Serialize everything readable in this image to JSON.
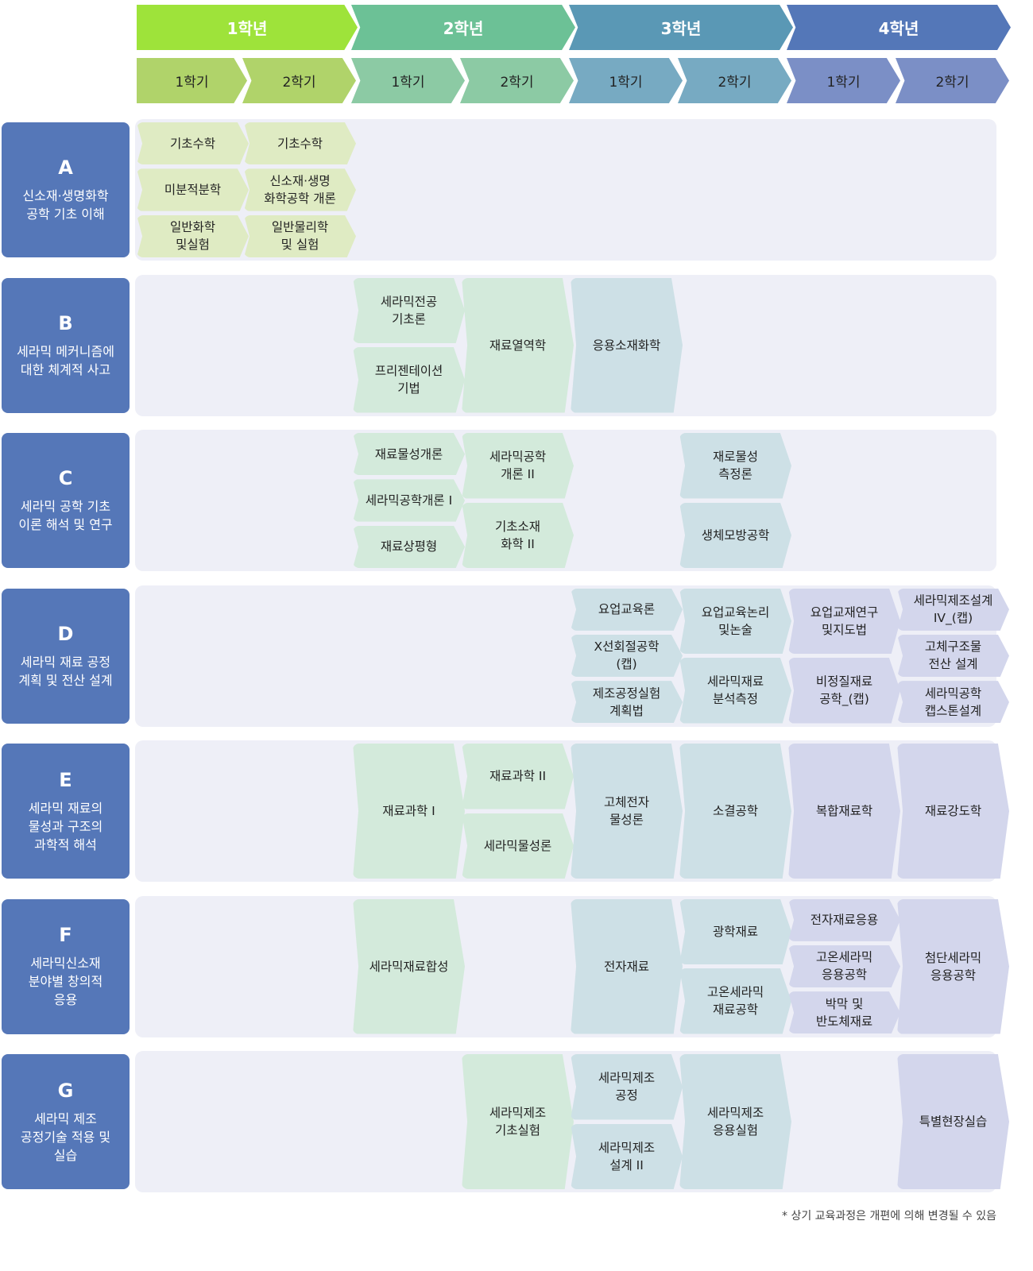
{
  "colors": {
    "years": [
      "#9ee33a",
      "#6cc196",
      "#5a98b5",
      "#5477b8"
    ],
    "semesters": [
      "#b0d36a",
      "#8ccaa4",
      "#77aac2",
      "#7b8fc6"
    ],
    "courses": [
      "#dfebc3",
      "#d3eadb",
      "#cde0e6",
      "#d3d6ec"
    ],
    "label_bg": "#5577b8",
    "panel_bg": "#eeeff7"
  },
  "header": {
    "years": [
      "1학년",
      "2학년",
      "3학년",
      "4학년"
    ],
    "semesters": [
      "1학기",
      "2학기",
      "1학기",
      "2학기",
      "1학기",
      "2학기",
      "1학기",
      "2학기"
    ]
  },
  "rows": [
    {
      "letter": "A",
      "title": "신소재·생명화학\n공학 기초 이해",
      "cells": [
        {
          "col": 0,
          "items": [
            "기초수학",
            "미분적분학",
            "일반화학\n및실험"
          ]
        },
        {
          "col": 1,
          "items": [
            "기초수학",
            "신소재·생명\n화학공학 개론",
            "일반물리학\n및 실험"
          ]
        }
      ]
    },
    {
      "letter": "B",
      "title": "세라믹 메커니즘에\n대한 체계적 사고",
      "cells": [
        {
          "col": 2,
          "items": [
            "세라믹전공\n기초론",
            "프리젠테이션\n기법"
          ]
        },
        {
          "col": 3,
          "items": [
            "재료열역학"
          ]
        },
        {
          "col": 4,
          "items": [
            "응용소재화학"
          ]
        }
      ]
    },
    {
      "letter": "C",
      "title": "세라믹 공학 기초\n이론 해석 및 연구",
      "cells": [
        {
          "col": 2,
          "items": [
            "재료물성개론",
            "세라믹공학개론 I",
            "재료상평형"
          ]
        },
        {
          "col": 3,
          "items": [
            "세라믹공학\n개론 II",
            "기초소재\n화학 II"
          ]
        },
        {
          "col": 5,
          "items": [
            "재로물성\n측정론",
            "생체모방공학"
          ]
        }
      ]
    },
    {
      "letter": "D",
      "title": "세라믹 재료 공정\n계획 및 전산 설계",
      "cells": [
        {
          "col": 4,
          "items": [
            "요업교육론",
            "X선회절공학\n(캡)",
            "제조공정실험\n계획법"
          ]
        },
        {
          "col": 5,
          "items": [
            "요업교육논리\n및논술",
            "세라믹재료\n분석측정"
          ]
        },
        {
          "col": 6,
          "items": [
            "요업교재연구\n및지도법",
            "비정질재료\n공학_(캡)"
          ]
        },
        {
          "col": 7,
          "items": [
            "세라믹제조설계\nIV_(캡)",
            "고체구조물\n전산 설계",
            "세라믹공학\n캡스톤설계"
          ]
        }
      ]
    },
    {
      "letter": "E",
      "title": "세라믹 재료의\n물성과 구조의\n과학적 해석",
      "cells": [
        {
          "col": 2,
          "items": [
            "재료과학 I"
          ]
        },
        {
          "col": 3,
          "items": [
            "재료과학 II",
            "세라믹물성론"
          ]
        },
        {
          "col": 4,
          "items": [
            "고체전자\n물성론"
          ]
        },
        {
          "col": 5,
          "items": [
            "소결공학"
          ]
        },
        {
          "col": 6,
          "items": [
            "복합재료학"
          ]
        },
        {
          "col": 7,
          "items": [
            "재료강도학"
          ]
        }
      ]
    },
    {
      "letter": "F",
      "title": "세라믹신소재\n분야별 창의적\n응용",
      "cells": [
        {
          "col": 2,
          "items": [
            "세라믹재료합성"
          ]
        },
        {
          "col": 4,
          "items": [
            "전자재료"
          ]
        },
        {
          "col": 5,
          "items": [
            "광학재료",
            "고온세라믹\n재료공학"
          ]
        },
        {
          "col": 6,
          "items": [
            "전자재료응용",
            "고온세라믹\n응용공학",
            "박막 및\n반도체재료"
          ]
        },
        {
          "col": 7,
          "items": [
            "첨단세라믹\n응용공학"
          ]
        }
      ]
    },
    {
      "letter": "G",
      "title": "세라믹 제조\n공정기술 적용 및\n실습",
      "cells": [
        {
          "col": 3,
          "items": [
            "세라믹제조\n기초실험"
          ]
        },
        {
          "col": 4,
          "items": [
            "세라믹제조\n공정",
            "세라믹제조\n설계 II"
          ]
        },
        {
          "col": 5,
          "items": [
            "세라믹제조\n응용실험"
          ]
        },
        {
          "col": 7,
          "items": [
            "특별현장실습"
          ]
        }
      ]
    }
  ],
  "footnote": "* 상기 교육과정은 개편에 의해 변경될 수 있음"
}
